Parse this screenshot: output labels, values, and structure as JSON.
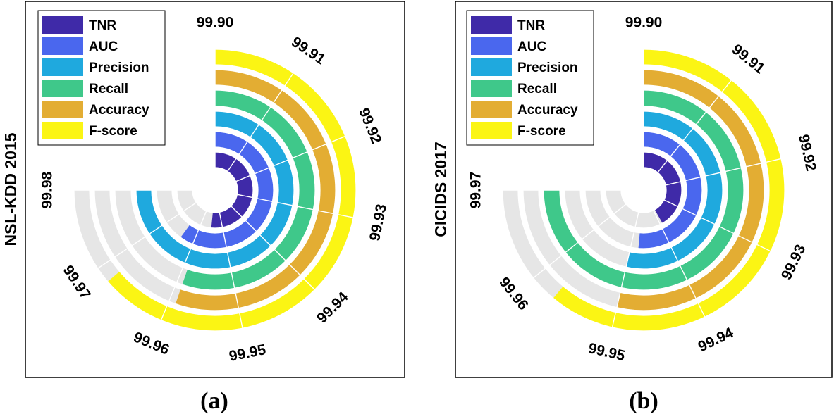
{
  "chart_data": [
    {
      "type": "radial-bar",
      "caption": "(a)",
      "ylabel": "NSL-KDD 2015",
      "angle_ticks": [
        "99.90",
        "99.91",
        "99.92",
        "99.93",
        "99.94",
        "99.95",
        "99.96",
        "99.97",
        "99.98"
      ],
      "angle_range": [
        99.9,
        99.98
      ],
      "series": [
        {
          "name": "TNR",
          "value": 99.955
        },
        {
          "name": "AUC",
          "value": 99.964
        },
        {
          "name": "Precision",
          "value": 99.98
        },
        {
          "name": "Recall",
          "value": 99.959
        },
        {
          "name": "Accuracy",
          "value": 99.959
        },
        {
          "name": "F-score",
          "value": 99.968
        }
      ]
    },
    {
      "type": "radial-bar",
      "caption": "(b)",
      "ylabel": "CICIDS 2017",
      "angle_ticks": [
        "99.90",
        "99.91",
        "99.92",
        "99.93",
        "99.94",
        "99.95",
        "99.96",
        "99.97"
      ],
      "angle_range": [
        99.9,
        99.97
      ],
      "series": [
        {
          "name": "TNR",
          "value": 99.939
        },
        {
          "name": "AUC",
          "value": 99.948
        },
        {
          "name": "Precision",
          "value": 99.95
        },
        {
          "name": "Recall",
          "value": 99.97
        },
        {
          "name": "Accuracy",
          "value": 99.95
        },
        {
          "name": "F-score",
          "value": 99.957
        }
      ]
    }
  ],
  "legend": {
    "items": [
      {
        "label": "TNR",
        "color": "#3f2aa8"
      },
      {
        "label": "AUC",
        "color": "#4a67ee"
      },
      {
        "label": "Precision",
        "color": "#1fa9de"
      },
      {
        "label": "Recall",
        "color": "#3fc88a"
      },
      {
        "label": "Accuracy",
        "color": "#e3ad33"
      },
      {
        "label": "F-score",
        "color": "#fbf514"
      }
    ]
  },
  "track_color": "#e6e6e6"
}
